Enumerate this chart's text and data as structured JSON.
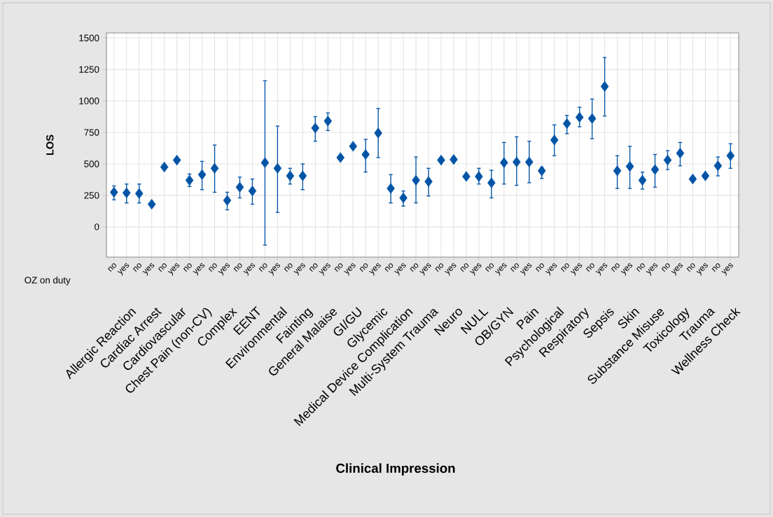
{
  "chart_data": {
    "type": "scatter",
    "ylabel": "LOS",
    "annotations": [
      "OZ on duty",
      "Allergic Reaction",
      "Cardiac Arrest",
      "Cardiovascular",
      "Chest Pain (non-CV)",
      "Complex",
      "EENT",
      "Environmental",
      "Fainting",
      "General Malaise",
      "GI/GU",
      "Glycemic",
      "Medical Device Complication",
      "Multi-System Trauma",
      "Neuro",
      "NULL",
      "OB/GYN",
      "Pain",
      "Psychological",
      "Respiratory",
      "Sepsis",
      "Skin",
      "Substance Misuse",
      "Toxicology",
      "Trauma",
      "Wellness Check",
      "Clinical Impression"
    ],
    "categories": [
      "no",
      "yes",
      "no",
      "yes",
      "no",
      "yes",
      "no",
      "yes",
      "no",
      "yes",
      "no",
      "yes",
      "no",
      "yes",
      "no",
      "yes",
      "no",
      "yes",
      "no",
      "yes",
      "no",
      "yes",
      "no",
      "yes",
      "no",
      "yes",
      "no",
      "yes",
      "no",
      "yes",
      "no",
      "yes",
      "no",
      "yes",
      "no",
      "yes",
      "no",
      "yes",
      "no",
      "yes",
      "no",
      "yes",
      "no",
      "yes",
      "no",
      "yes",
      "no",
      "yes",
      "no",
      "yes"
    ],
    "values": [
      275,
      270,
      265,
      180,
      475,
      530,
      370,
      415,
      465,
      210,
      315,
      285,
      510,
      465,
      405,
      405,
      785,
      840,
      550,
      640,
      575,
      745,
      305,
      230,
      370,
      360,
      530,
      535,
      400,
      400,
      350,
      510,
      515,
      515,
      445,
      690,
      820,
      870,
      860,
      1115,
      445,
      480,
      370,
      455,
      530,
      585,
      380,
      405,
      485,
      565
    ],
    "errors": [
      [
        215,
        325
      ],
      [
        190,
        340
      ],
      [
        190,
        340
      ],
      null,
      null,
      null,
      [
        320,
        420
      ],
      [
        295,
        520
      ],
      [
        275,
        650
      ],
      [
        135,
        275
      ],
      [
        230,
        395
      ],
      [
        180,
        380
      ],
      [
        -145,
        1160
      ],
      [
        115,
        800
      ],
      [
        340,
        465
      ],
      [
        295,
        500
      ],
      [
        680,
        875
      ],
      [
        765,
        905
      ],
      null,
      null,
      [
        435,
        695
      ],
      [
        550,
        940
      ],
      [
        190,
        415
      ],
      [
        165,
        285
      ],
      [
        190,
        555
      ],
      [
        245,
        465
      ],
      null,
      null,
      null,
      [
        340,
        465
      ],
      [
        230,
        450
      ],
      [
        340,
        670
      ],
      [
        330,
        715
      ],
      [
        350,
        680
      ],
      [
        385,
        470
      ],
      [
        565,
        810
      ],
      [
        740,
        885
      ],
      [
        795,
        950
      ],
      [
        700,
        1015
      ],
      [
        880,
        1345
      ],
      [
        305,
        565
      ],
      [
        305,
        640
      ],
      [
        300,
        435
      ],
      [
        315,
        575
      ],
      [
        455,
        605
      ],
      [
        485,
        670
      ],
      null,
      null,
      [
        405,
        555
      ],
      [
        465,
        660
      ]
    ],
    "color": "#0054a6",
    "marker": "diamond",
    "grid": true,
    "ylim": [
      -240,
      1540
    ],
    "yticks": [
      0,
      250,
      500,
      750,
      1000,
      1250,
      1500
    ]
  }
}
